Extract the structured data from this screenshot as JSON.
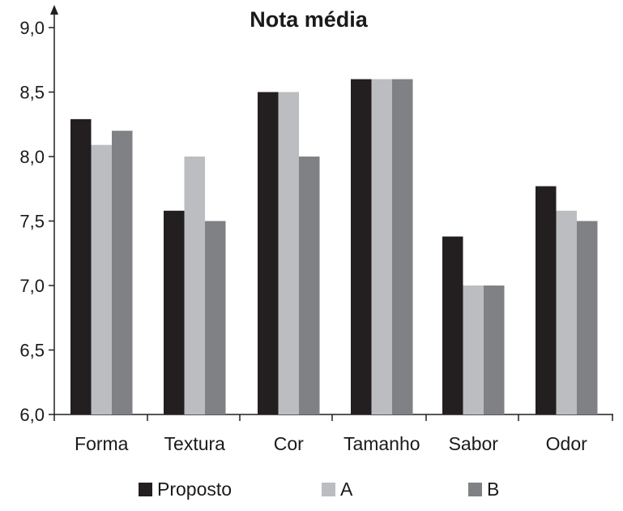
{
  "chart_data": {
    "type": "bar",
    "title": "Nota média",
    "categories": [
      "Forma",
      "Textura",
      "Cor",
      "Tamanho",
      "Sabor",
      "Odor"
    ],
    "series": [
      {
        "name": "Proposto",
        "color": "#231f20",
        "values": [
          8.29,
          7.58,
          8.5,
          8.6,
          7.38,
          7.77
        ]
      },
      {
        "name": "A",
        "color": "#bcbdc0",
        "values": [
          8.09,
          8.0,
          8.5,
          8.6,
          7.0,
          7.58
        ]
      },
      {
        "name": "B",
        "color": "#808184",
        "values": [
          8.2,
          7.5,
          8.0,
          8.6,
          7.0,
          7.5
        ]
      }
    ],
    "ylim": [
      6.0,
      9.0
    ],
    "yticks": [
      "6,0",
      "6,5",
      "7,0",
      "7,5",
      "8,0",
      "8,5",
      "9,0"
    ],
    "ytick_values": [
      6.0,
      6.5,
      7.0,
      7.5,
      8.0,
      8.5,
      9.0
    ],
    "grid": false,
    "legend_position": "bottom"
  }
}
